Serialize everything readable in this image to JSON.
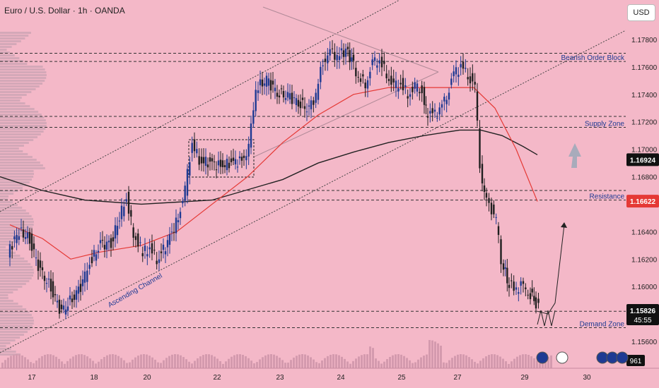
{
  "header": {
    "title": "Euro / U.S. Dollar · 1h · OANDA",
    "currency_button": "USD"
  },
  "colors": {
    "background": "#f4b8c8",
    "bull": "#1f3a93",
    "bear": "#1f1f1f",
    "ma_fast": "#e53935",
    "ma_slow": "#222222",
    "price_tag": "#111111",
    "resistance_tag": "#e53935"
  },
  "chart_data": {
    "type": "candlestick",
    "symbol": "Euro / U.S. Dollar",
    "timeframe": "1h",
    "source": "OANDA",
    "ylim": [
      1.155,
      1.179
    ],
    "y_ticks": [
      "1.17800",
      "1.17600",
      "1.17400",
      "1.17200",
      "1.17000",
      "1.16800",
      "1.16400",
      "1.16200",
      "1.16000",
      "1.15600"
    ],
    "x_ticks": [
      "17",
      "18",
      "20",
      "22",
      "23",
      "24",
      "25",
      "27",
      "29",
      "30"
    ],
    "current_price": {
      "value": "1.15826",
      "countdown": "45:55"
    },
    "resistance_price_tag": "1.16622",
    "ma_price_tag": "1.16924",
    "volume_tag": "961",
    "zones": [
      {
        "label": "Bearish Order Block",
        "top": 1.177,
        "bottom": 1.1764
      },
      {
        "label": "Supply Zone",
        "top": 1.1724,
        "bottom": 1.1716
      },
      {
        "label": "Resistance",
        "top": 1.167,
        "bottom": 1.1663
      },
      {
        "label": "Demand Zone",
        "top": 1.1582,
        "bottom": 1.157
      }
    ],
    "annotations": {
      "channel": "Ascending Channel"
    },
    "close_path": [
      [
        14,
        1.1625
      ],
      [
        30,
        1.164
      ],
      [
        45,
        1.1635
      ],
      [
        60,
        1.161
      ],
      [
        75,
        1.16
      ],
      [
        90,
        1.158
      ],
      [
        105,
        1.1592
      ],
      [
        120,
        1.1602
      ],
      [
        130,
        1.1618
      ],
      [
        145,
        1.163
      ],
      [
        160,
        1.1632
      ],
      [
        172,
        1.165
      ],
      [
        182,
        1.1665
      ],
      [
        192,
        1.1638
      ],
      [
        205,
        1.1625
      ],
      [
        215,
        1.1628
      ],
      [
        225,
        1.162
      ],
      [
        240,
        1.1632
      ],
      [
        255,
        1.165
      ],
      [
        265,
        1.167
      ],
      [
        275,
        1.1705
      ],
      [
        285,
        1.1692
      ],
      [
        300,
        1.169
      ],
      [
        315,
        1.1688
      ],
      [
        330,
        1.169
      ],
      [
        345,
        1.1692
      ],
      [
        355,
        1.17
      ],
      [
        365,
        1.1745
      ],
      [
        380,
        1.175
      ],
      [
        395,
        1.1742
      ],
      [
        410,
        1.1738
      ],
      [
        425,
        1.1735
      ],
      [
        440,
        1.1728
      ],
      [
        450,
        1.174
      ],
      [
        460,
        1.1765
      ],
      [
        470,
        1.177
      ],
      [
        480,
        1.1768
      ],
      [
        492,
        1.1772
      ],
      [
        500,
        1.1765
      ],
      [
        510,
        1.1752
      ],
      [
        520,
        1.1748
      ],
      [
        530,
        1.1762
      ],
      [
        540,
        1.1765
      ],
      [
        550,
        1.1755
      ],
      [
        560,
        1.1745
      ],
      [
        570,
        1.1748
      ],
      [
        580,
        1.174
      ],
      [
        590,
        1.1745
      ],
      [
        600,
        1.1742
      ],
      [
        605,
        1.1728
      ],
      [
        615,
        1.1725
      ],
      [
        625,
        1.1728
      ],
      [
        635,
        1.174
      ],
      [
        645,
        1.1755
      ],
      [
        655,
        1.176
      ],
      [
        665,
        1.1755
      ],
      [
        675,
        1.1745
      ],
      [
        682,
        1.169
      ],
      [
        688,
        1.1665
      ],
      [
        695,
        1.166
      ],
      [
        705,
        1.1648
      ],
      [
        712,
        1.162
      ],
      [
        720,
        1.1605
      ],
      [
        730,
        1.1598
      ],
      [
        740,
        1.16
      ],
      [
        750,
        1.1597
      ],
      [
        758,
        1.159
      ],
      [
        765,
        1.1586
      ]
    ],
    "ma_fast": [
      [
        14,
        1.1645
      ],
      [
        60,
        1.1635
      ],
      [
        100,
        1.162
      ],
      [
        140,
        1.1625
      ],
      [
        200,
        1.163
      ],
      [
        250,
        1.164
      ],
      [
        300,
        1.166
      ],
      [
        350,
        1.168
      ],
      [
        400,
        1.1705
      ],
      [
        450,
        1.1725
      ],
      [
        500,
        1.174
      ],
      [
        550,
        1.1745
      ],
      [
        600,
        1.1745
      ],
      [
        640,
        1.1745
      ],
      [
        670,
        1.1745
      ],
      [
        700,
        1.173
      ],
      [
        730,
        1.17
      ],
      [
        760,
        1.1662
      ]
    ],
    "ma_slow": [
      [
        0,
        1.168
      ],
      [
        60,
        1.167
      ],
      [
        120,
        1.1663
      ],
      [
        200,
        1.166
      ],
      [
        300,
        1.1663
      ],
      [
        400,
        1.1678
      ],
      [
        450,
        1.169
      ],
      [
        500,
        1.1698
      ],
      [
        550,
        1.1705
      ],
      [
        600,
        1.171
      ],
      [
        650,
        1.1714
      ],
      [
        680,
        1.1714
      ],
      [
        710,
        1.171
      ],
      [
        740,
        1.1702
      ],
      [
        760,
        1.1696
      ]
    ],
    "projection": [
      [
        760,
        1.1582
      ],
      [
        775,
        1.158
      ],
      [
        785,
        1.1588
      ],
      [
        798,
        1.1645
      ]
    ]
  }
}
